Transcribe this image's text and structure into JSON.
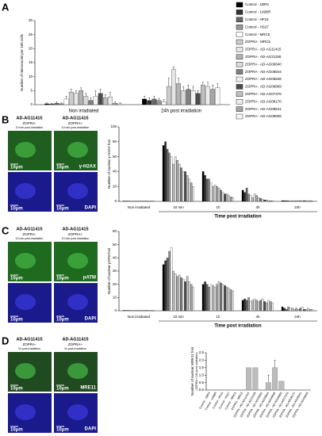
{
  "chart_data": [
    {
      "type": "bar",
      "panel_label": "A",
      "ylabel": "Number of micronuclei per 100 cells",
      "categories": [
        "Non irradiated",
        "24h post irradiation"
      ],
      "ylim": [
        0,
        30
      ],
      "yticks": [
        0,
        5,
        10,
        15,
        20,
        25,
        30
      ],
      "series": [
        {
          "name": "Control - 1BR3",
          "color": "#000000",
          "values": [
            0.3,
            2
          ],
          "errors": [
            0.3,
            1
          ]
        },
        {
          "name": "Control - 149BR",
          "color": "#333333",
          "values": [
            0.2,
            1.5
          ],
          "errors": [
            0.3,
            1
          ]
        },
        {
          "name": "Control - HF19",
          "color": "#666666",
          "values": [
            0.5,
            2
          ],
          "errors": [
            0.5,
            1
          ]
        },
        {
          "name": "Control - HS27",
          "color": "#999999",
          "values": [
            0.3,
            1.5
          ],
          "errors": [
            0.3,
            0.8
          ]
        },
        {
          "name": "Control - MRC5",
          "color": "#ffffff",
          "values": [
            2,
            1
          ],
          "errors": [
            1,
            0.8
          ]
        },
        {
          "name": "ZOPRA - MRC5",
          "color": "#cccccc",
          "values": [
            4.5,
            6.5
          ],
          "errors": [
            1,
            3
          ]
        },
        {
          "name": "ZOPRA - AD-AG11415",
          "color": "#e6e6e6",
          "values": [
            4,
            12.5
          ],
          "errors": [
            1,
            1
          ]
        },
        {
          "name": "ZOPRA - AD-AG21158",
          "color": "#b3b3b3",
          "values": [
            5,
            7.5
          ],
          "errors": [
            1,
            2
          ]
        },
        {
          "name": "ZOPRA - AD-AG06840",
          "color": "#d9d9d9",
          "values": [
            3,
            5
          ],
          "errors": [
            1,
            1.5
          ]
        },
        {
          "name": "ZOPRA - AD-AG06844",
          "color": "#808080",
          "values": [
            1.5,
            5.5
          ],
          "errors": [
            1,
            1.5
          ]
        },
        {
          "name": "ZOPRA - AD-AG06848",
          "color": "#f2f2f2",
          "values": [
            3,
            5
          ],
          "errors": [
            2,
            1.5
          ]
        },
        {
          "name": "ZOPRA - AD-AG06869",
          "color": "#4d4d4d",
          "values": [
            4,
            4
          ],
          "errors": [
            1.5,
            1
          ]
        },
        {
          "name": "ZOPRA - AD-AG07376",
          "color": "#bfbfbf",
          "values": [
            2.5,
            7
          ],
          "errors": [
            1,
            1
          ]
        },
        {
          "name": "ZOPRA - AD-AG08170",
          "color": "#ececec",
          "values": [
            2.8,
            6.5
          ],
          "errors": [
            1.5,
            1.5
          ]
        },
        {
          "name": "ZOPRA - AD-AG08541",
          "color": "#a6a6a6",
          "values": [
            0.5,
            5.5
          ],
          "errors": [
            0.5,
            1.5
          ]
        },
        {
          "name": "ZOPRA - AD-AG09908",
          "color": "#f7f7f7",
          "values": [
            0.3,
            6
          ],
          "errors": [
            0.3,
            1.5
          ]
        }
      ]
    },
    {
      "type": "bar",
      "panel_label": "B",
      "ylabel": "Number of nuclear γ-H2AX foci",
      "xlabel": "Time post irradiation",
      "images": {
        "cell_line": "AD-AG11415",
        "left": [
          "ZOPRA-",
          "10 min post-irradiation"
        ],
        "right": [
          "ZOPRA+",
          "10 min post-irradiation"
        ],
        "scale": "10μm",
        "stain_top": "γ-H2AX",
        "stain_bottom": "DAPI",
        "top_color": "#1f5e1f",
        "bottom_color": "#1a1a8c"
      },
      "categories": [
        "Non irradiated",
        "10 min",
        "1h",
        "4h",
        "24h"
      ],
      "ylim": [
        0,
        100
      ],
      "yticks": [
        0,
        20,
        40,
        60,
        80,
        100
      ],
      "series": [
        {
          "color": "#000000",
          "values": [
            0.5,
            75,
            40,
            15,
            1
          ]
        },
        {
          "color": "#333333",
          "values": [
            0.5,
            80,
            35,
            12,
            1
          ]
        },
        {
          "color": "#666666",
          "values": [
            0.5,
            70,
            30,
            18,
            1
          ]
        },
        {
          "color": "#999999",
          "values": [
            0.5,
            65,
            30,
            10,
            1
          ]
        },
        {
          "color": "#ffffff",
          "values": [
            0.5,
            60,
            25,
            8,
            1
          ]
        },
        {
          "color": "#cccccc",
          "values": [
            0.5,
            50,
            20,
            5,
            1
          ]
        },
        {
          "color": "#e6e6e6",
          "values": [
            0.5,
            60,
            22,
            10,
            1
          ]
        },
        {
          "color": "#b3b3b3",
          "values": [
            0.5,
            55,
            20,
            8,
            1
          ]
        },
        {
          "color": "#d9d9d9",
          "values": [
            0.5,
            50,
            18,
            5,
            1
          ]
        },
        {
          "color": "#808080",
          "values": [
            0.5,
            45,
            15,
            4,
            1
          ]
        },
        {
          "color": "#f2f2f2",
          "values": [
            0.5,
            40,
            12,
            3,
            1
          ]
        },
        {
          "color": "#4d4d4d",
          "values": [
            0.5,
            40,
            10,
            2,
            1
          ]
        },
        {
          "color": "#bfbfbf",
          "values": [
            0.5,
            35,
            10,
            2,
            1
          ]
        },
        {
          "color": "#ececec",
          "values": [
            0.5,
            30,
            8,
            1,
            1
          ]
        },
        {
          "color": "#a6a6a6",
          "values": [
            0.5,
            25,
            6,
            1,
            1
          ]
        },
        {
          "color": "#f7f7f7",
          "values": [
            0.5,
            20,
            5,
            1,
            1
          ]
        }
      ]
    },
    {
      "type": "bar",
      "panel_label": "C",
      "ylabel": "Number of nuclear pATM foci",
      "xlabel": "Time post irradiation",
      "images": {
        "cell_line": "AD-AG11415",
        "left": [
          "ZOPRA-",
          "10 min post-irradiation"
        ],
        "right": [
          "ZOPRA+",
          "10 min post-irradiation"
        ],
        "scale": "10μm",
        "stain_top": "pATM",
        "stain_bottom": "DAPI",
        "top_color": "#1e6a1e",
        "bottom_color": "#1a1a8c"
      },
      "categories": [
        "Non irradiated",
        "10 min",
        "1h",
        "4h",
        "24h"
      ],
      "ylim": [
        0,
        60
      ],
      "yticks": [
        0,
        10,
        20,
        30,
        40,
        50,
        60
      ],
      "series": [
        {
          "color": "#000000",
          "values": [
            0.3,
            35,
            20,
            8,
            3
          ]
        },
        {
          "color": "#333333",
          "values": [
            0.3,
            38,
            22,
            9,
            2
          ]
        },
        {
          "color": "#666666",
          "values": [
            0.3,
            40,
            20,
            8,
            1
          ]
        },
        {
          "color": "#999999",
          "values": [
            0.3,
            45,
            18,
            10,
            3
          ]
        },
        {
          "color": "#ffffff",
          "values": [
            0.3,
            48,
            20,
            7,
            2
          ]
        },
        {
          "color": "#cccccc",
          "values": [
            0.3,
            30,
            19,
            8,
            2
          ]
        },
        {
          "color": "#e6e6e6",
          "values": [
            0.3,
            28,
            18,
            9,
            1
          ]
        },
        {
          "color": "#b3b3b3",
          "values": [
            0.3,
            26,
            20,
            8,
            2
          ]
        },
        {
          "color": "#d9d9d9",
          "values": [
            0.3,
            27,
            22,
            7,
            1
          ]
        },
        {
          "color": "#808080",
          "values": [
            0.3,
            25,
            21,
            8,
            2
          ]
        },
        {
          "color": "#f2f2f2",
          "values": [
            0.3,
            24,
            20,
            9,
            3
          ]
        },
        {
          "color": "#4d4d4d",
          "values": [
            0.3,
            22,
            19,
            7,
            1
          ]
        },
        {
          "color": "#bfbfbf",
          "values": [
            0.3,
            26,
            18,
            6,
            1
          ]
        },
        {
          "color": "#ececec",
          "values": [
            0.3,
            22,
            17,
            8,
            2
          ]
        },
        {
          "color": "#a6a6a6",
          "values": [
            0.3,
            20,
            16,
            7,
            1
          ]
        },
        {
          "color": "#f7f7f7",
          "values": [
            0.3,
            18,
            15,
            6,
            1
          ]
        }
      ]
    },
    {
      "type": "bar",
      "panel_label": "D",
      "ylabel": "Number of nuclear MRE11 foci",
      "ylabel2": "(ZOPRA + 24h post irradiation)",
      "images": {
        "cell_line": "AD-AG11415",
        "left": [
          "ZOPRA-",
          "1h post-irradiation"
        ],
        "right": [
          "ZOPRA+",
          "1h post-irradiation"
        ],
        "scale": "10μm",
        "stain_top": "MRE11",
        "stain_bottom": "DAPI",
        "top_color": "#204a20",
        "bottom_color": "#1a1a8c"
      },
      "categories": [
        "Control - 1BR3",
        "Control - 149BR",
        "Control - HF19",
        "Control - HS27",
        "Control - MRC5",
        "ZOPRA - MRC5",
        "ZOPRA - AD-AG11415",
        "ZOPRA - AD-AG21158",
        "ZOPRA - AD-AG06840",
        "ZOPRA - AD-AG06844",
        "ZOPRA - AD-AG06848",
        "ZOPRA - AD-AG06869",
        "ZOPRA - AD-AG07376",
        "ZOPRA - AD-AG08170",
        "ZOPRA - AD-AG08541",
        "ZOPRA - AD-AG09908"
      ],
      "values": [
        0,
        0,
        0,
        0,
        0,
        0,
        1.5,
        1.5,
        0,
        0.5,
        1.5,
        0.6,
        0,
        0,
        0,
        0
      ],
      "errors": [
        0,
        0,
        0,
        0,
        0,
        0,
        0,
        0,
        0,
        0.5,
        0.5,
        0,
        0,
        0,
        0,
        0
      ],
      "color": "#bbbbbb",
      "ylim": [
        0,
        2.5
      ],
      "yticks": [
        {
          "value": 0,
          "label": "0.0"
        },
        {
          "value": 0.5,
          "label": "0.5"
        },
        {
          "value": 1,
          "label": "1.0"
        },
        {
          "value": 1.5,
          "label": "1.5"
        },
        {
          "value": 2,
          "label": "2.0"
        },
        {
          "value": 2.5,
          "label": "2.5"
        }
      ]
    }
  ]
}
